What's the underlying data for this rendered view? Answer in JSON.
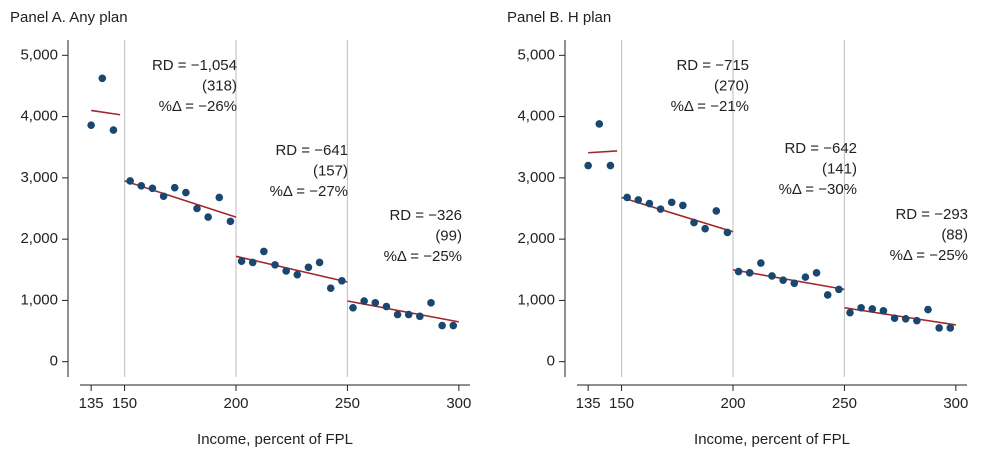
{
  "chart_data": [
    {
      "type": "scatter",
      "title": "Panel A. Any plan",
      "x_label": "Income, percent of FPL",
      "xlim": [
        130,
        305
      ],
      "ylim": [
        -250,
        5250
      ],
      "xticks": [
        135,
        150,
        200,
        250,
        300
      ],
      "yticks": [
        0,
        {
          "value": 1000,
          "label": "1,000"
        },
        {
          "value": 2000,
          "label": "2,000"
        },
        {
          "value": 3000,
          "label": "3,000"
        },
        {
          "value": 4000,
          "label": "4,000"
        },
        {
          "value": 5000,
          "label": "5,000"
        }
      ],
      "cutoffs": [
        150,
        200,
        250
      ],
      "x": [
        135,
        140,
        145,
        152.5,
        157.5,
        162.5,
        167.5,
        172.5,
        177.5,
        182.5,
        187.5,
        192.5,
        197.5,
        202.5,
        207.5,
        212.5,
        217.5,
        222.5,
        227.5,
        232.5,
        237.5,
        242.5,
        247.5,
        252.5,
        257.5,
        262.5,
        267.5,
        272.5,
        277.5,
        282.5,
        287.5,
        292.5,
        297.5
      ],
      "series": [
        {
          "color": "#1a476f",
          "values": [
            3860,
            4625,
            3780,
            2950,
            2870,
            2830,
            2700,
            2840,
            2760,
            2500,
            2360,
            2680,
            2290,
            1640,
            1620,
            1800,
            1580,
            1480,
            1420,
            1540,
            1620,
            1200,
            1320,
            880,
            990,
            960,
            900,
            770,
            770,
            740,
            960,
            590,
            590
          ]
        }
      ],
      "fit_lines": [
        {
          "color": "#a0282d",
          "x": [
            135,
            148
          ],
          "values": [
            4100,
            4030
          ]
        },
        {
          "color": "#a0282d",
          "x": [
            150,
            200
          ],
          "values": [
            2950,
            2360
          ]
        },
        {
          "color": "#a0282d",
          "x": [
            200,
            250
          ],
          "values": [
            1720,
            1300
          ]
        },
        {
          "color": "#a0282d",
          "x": [
            250,
            300
          ],
          "values": [
            990,
            650
          ]
        }
      ],
      "annotations": [
        [
          "RD = −1,054",
          "(318)",
          "%Δ = −26%"
        ],
        [
          "RD = −641",
          "(157)",
          "%Δ = −27%"
        ],
        [
          "RD = −326",
          "(99)",
          "%Δ = −25%"
        ]
      ]
    },
    {
      "type": "scatter",
      "title": "Panel B. H plan",
      "x_label": "Income, percent of FPL",
      "xlim": [
        130,
        305
      ],
      "ylim": [
        -250,
        5250
      ],
      "xticks": [
        135,
        150,
        200,
        250,
        300
      ],
      "yticks": [
        0,
        {
          "value": 1000,
          "label": "1,000"
        },
        {
          "value": 2000,
          "label": "2,000"
        },
        {
          "value": 3000,
          "label": "3,000"
        },
        {
          "value": 4000,
          "label": "4,000"
        },
        {
          "value": 5000,
          "label": "5,000"
        }
      ],
      "cutoffs": [
        150,
        200,
        250
      ],
      "x": [
        135,
        140,
        145,
        152.5,
        157.5,
        162.5,
        167.5,
        172.5,
        177.5,
        182.5,
        187.5,
        192.5,
        197.5,
        202.5,
        207.5,
        212.5,
        217.5,
        222.5,
        227.5,
        232.5,
        237.5,
        242.5,
        247.5,
        252.5,
        257.5,
        262.5,
        267.5,
        272.5,
        277.5,
        282.5,
        287.5,
        292.5,
        297.5
      ],
      "series": [
        {
          "color": "#1a476f",
          "values": [
            3200,
            3880,
            3200,
            2680,
            2640,
            2580,
            2490,
            2600,
            2550,
            2270,
            2170,
            2460,
            2110,
            1470,
            1450,
            1610,
            1400,
            1330,
            1280,
            1380,
            1450,
            1090,
            1180,
            800,
            880,
            860,
            830,
            710,
            700,
            670,
            850,
            550,
            550
          ]
        }
      ],
      "fit_lines": [
        {
          "color": "#a0282d",
          "x": [
            135,
            148
          ],
          "values": [
            3410,
            3440
          ]
        },
        {
          "color": "#a0282d",
          "x": [
            150,
            200
          ],
          "values": [
            2680,
            2120
          ]
        },
        {
          "color": "#a0282d",
          "x": [
            200,
            250
          ],
          "values": [
            1500,
            1180
          ]
        },
        {
          "color": "#a0282d",
          "x": [
            250,
            300
          ],
          "values": [
            880,
            600
          ]
        }
      ],
      "annotations": [
        [
          "RD = −715",
          "(270)",
          "%Δ = −21%"
        ],
        [
          "RD = −642",
          "(141)",
          "%Δ = −30%"
        ],
        [
          "RD = −293",
          "(88)",
          "%Δ = −25%"
        ]
      ]
    }
  ]
}
